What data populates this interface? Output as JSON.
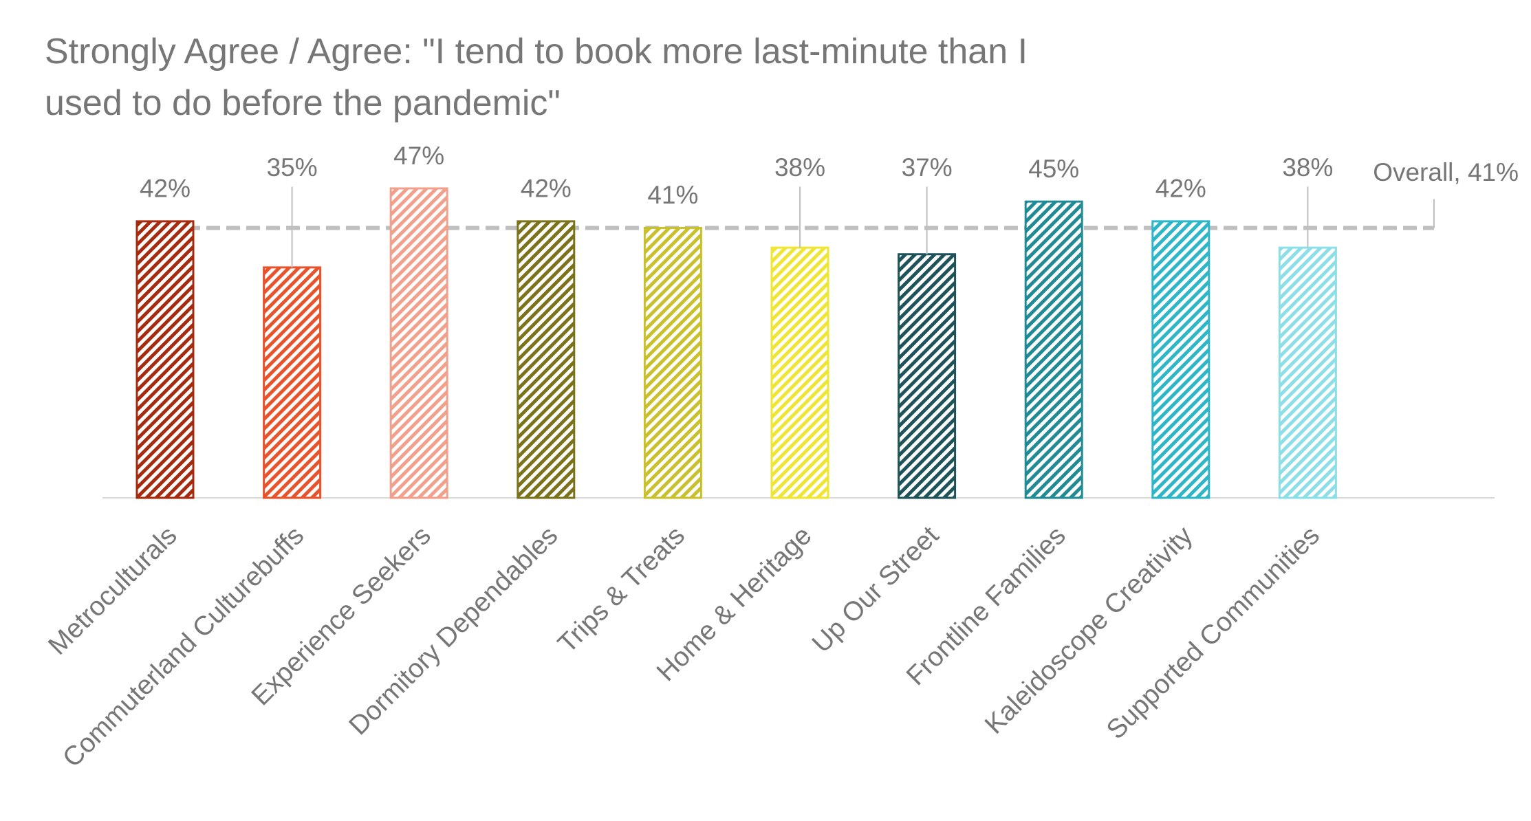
{
  "chart_data": {
    "type": "bar",
    "title": "Strongly Agree / Agree: \"I tend to book more last-minute than I used to do before the pandemic\"",
    "categories": [
      "Metroculturals",
      "Commuterland Culturebuffs",
      "Experience Seekers",
      "Dormitory Dependables",
      "Trips & Treats",
      "Home & Heritage",
      "Up Our Street",
      "Frontline Families",
      "Kaleidoscope Creativity",
      "Supported Communities"
    ],
    "values": [
      42,
      35,
      47,
      42,
      41,
      38,
      37,
      45,
      42,
      38
    ],
    "value_labels": [
      "42%",
      "35%",
      "47%",
      "42%",
      "41%",
      "38%",
      "37%",
      "45%",
      "42%",
      "38%"
    ],
    "colors": [
      "#a62b0e",
      "#e8532b",
      "#f2a08b",
      "#7a731a",
      "#c8c12c",
      "#efe633",
      "#1e535a",
      "#208b95",
      "#2cb6c7",
      "#8cdfe6"
    ],
    "reference": {
      "value": 41,
      "label": "Overall, 41%",
      "color": "#bfbfbf"
    }
  }
}
